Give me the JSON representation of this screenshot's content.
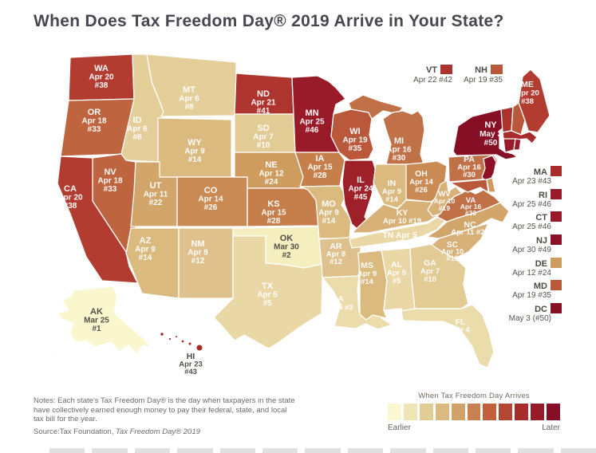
{
  "title": "When Does Tax Freedom Day® 2019 Arrive in Your State?",
  "map": {
    "states": [
      {
        "abbr": "WA",
        "color": "#B23C30",
        "lines": [
          "WA",
          "Apr 20",
          "#38"
        ]
      },
      {
        "abbr": "OR",
        "color": "#BE6540",
        "lines": [
          "OR",
          "Apr 18",
          "#33"
        ]
      },
      {
        "abbr": "CA",
        "color": "#B23C30",
        "lines": [
          "CA",
          "Apr 20",
          "#38"
        ]
      },
      {
        "abbr": "NV",
        "color": "#BE6540",
        "lines": [
          "NV",
          "Apr 18",
          "#33"
        ]
      },
      {
        "abbr": "ID",
        "color": "#E4CF9B",
        "lines": [
          "ID",
          "Apr 6",
          "#8"
        ]
      },
      {
        "abbr": "MT",
        "color": "#E4CF9B",
        "lines": [
          "MT",
          "Apr 6",
          "#8"
        ]
      },
      {
        "abbr": "WY",
        "color": "#DBBA80",
        "lines": [
          "WY",
          "Apr 9",
          "#14"
        ]
      },
      {
        "abbr": "UT",
        "color": "#D2A56B",
        "lines": [
          "UT",
          "Apr 11",
          "#22"
        ]
      },
      {
        "abbr": "CO",
        "color": "#CA8A53",
        "lines": [
          "CO",
          "Apr 14",
          "#26"
        ]
      },
      {
        "abbr": "AZ",
        "color": "#DBBA80",
        "lines": [
          "AZ",
          "Apr 9",
          "#14"
        ]
      },
      {
        "abbr": "NM",
        "color": "#DEC18C",
        "lines": [
          "NM",
          "Apr 8",
          "#12"
        ]
      },
      {
        "abbr": "ND",
        "color": "#AE352E",
        "lines": [
          "ND",
          "Apr 21",
          "#41"
        ]
      },
      {
        "abbr": "SD",
        "color": "#E2CB95",
        "lines": [
          "SD",
          "Apr 7",
          "#10"
        ]
      },
      {
        "abbr": "NE",
        "color": "#CF9C60",
        "lines": [
          "NE",
          "Apr 12",
          "#24"
        ]
      },
      {
        "abbr": "KS",
        "color": "#C67F4B",
        "lines": [
          "KS",
          "Apr 15",
          "#28"
        ]
      },
      {
        "abbr": "OK",
        "color": "#F5EEBE",
        "dark": true,
        "lines": [
          "OK",
          "Mar 30",
          "#2"
        ]
      },
      {
        "abbr": "TX",
        "color": "#E9D8A5",
        "lines": [
          "TX",
          "Apr 5",
          "#5"
        ]
      },
      {
        "abbr": "MN",
        "color": "#991A28",
        "lines": [
          "MN",
          "Apr 25",
          "#46"
        ]
      },
      {
        "abbr": "IA",
        "color": "#C67F4B",
        "lines": [
          "IA",
          "Apr 15",
          "#28"
        ]
      },
      {
        "abbr": "MO",
        "color": "#DBBA80",
        "lines": [
          "MO",
          "Apr 9",
          "#14"
        ]
      },
      {
        "abbr": "AR",
        "color": "#DEC18C",
        "lines": [
          "AR",
          "Apr 8",
          "#12"
        ]
      },
      {
        "abbr": "LA",
        "color": "#EBDCAB",
        "lines": [
          "LA",
          "Apr 4 #3"
        ]
      },
      {
        "abbr": "WI",
        "color": "#B9583A",
        "lines": [
          "WI",
          "Apr 19",
          "#35"
        ]
      },
      {
        "abbr": "IL",
        "color": "#9E2029",
        "lines": [
          "IL",
          "Apr 24",
          "#45"
        ]
      },
      {
        "abbr": "IN",
        "color": "#DBBA80",
        "lines": [
          "IN",
          "Apr 9",
          "#14"
        ]
      },
      {
        "abbr": "MI",
        "color": "#C17148",
        "lines": [
          "MI",
          "Apr 16",
          "#30"
        ]
      },
      {
        "abbr": "OH",
        "color": "#CA8A53",
        "lines": [
          "OH",
          "Apr 14",
          "#26"
        ]
      },
      {
        "abbr": "KY",
        "color": "#D7B178",
        "lines": [
          "KY",
          "Apr 10 #19"
        ]
      },
      {
        "abbr": "TN",
        "color": "#E9D8A5",
        "lines": [
          "TN  Apr 5",
          "#5"
        ]
      },
      {
        "abbr": "MS",
        "color": "#DBBA80",
        "lines": [
          "MS",
          "Apr 9",
          "#14"
        ]
      },
      {
        "abbr": "AL",
        "color": "#E9D8A5",
        "lines": [
          "AL",
          "Apr 5",
          "#5"
        ]
      },
      {
        "abbr": "GA",
        "color": "#E2CB95",
        "lines": [
          "GA",
          "Apr 7",
          "#10"
        ]
      },
      {
        "abbr": "FL",
        "color": "#EBDCAB",
        "lines": [
          "FL",
          "Apr 4",
          "#3"
        ]
      },
      {
        "abbr": "SC",
        "color": "#D7B178",
        "lines": [
          "SC",
          "Apr 10",
          "#19"
        ]
      },
      {
        "abbr": "NC",
        "color": "#D2A56B",
        "lines": [
          "NC",
          "Apr 11 #22"
        ]
      },
      {
        "abbr": "VA",
        "color": "#C17148",
        "lines": [
          "VA",
          "Apr 16",
          "#30"
        ]
      },
      {
        "abbr": "WV",
        "color": "#D7B178",
        "lines": [
          "WV",
          "Apr 10",
          "#19"
        ]
      },
      {
        "abbr": "PA",
        "color": "#C17148",
        "lines": [
          "PA",
          "Apr 16",
          "#30"
        ]
      },
      {
        "abbr": "NY",
        "color": "#860E25",
        "lines": [
          "NY",
          "May 3",
          "#50"
        ]
      },
      {
        "abbr": "ME",
        "color": "#B23C30",
        "lines": [
          "ME",
          "Apr 20",
          "#38"
        ]
      },
      {
        "abbr": "VT",
        "color": "#AC322E",
        "lines": []
      },
      {
        "abbr": "NH",
        "color": "#B9583A",
        "lines": []
      },
      {
        "abbr": "MA",
        "color": "#A72C2B",
        "lines": []
      },
      {
        "abbr": "CT",
        "color": "#991A28",
        "lines": []
      },
      {
        "abbr": "RI",
        "color": "#991A28",
        "lines": []
      },
      {
        "abbr": "NJ",
        "color": "#8D1126",
        "lines": []
      },
      {
        "abbr": "DE",
        "color": "#CF9C60",
        "lines": []
      },
      {
        "abbr": "MD",
        "color": "#B9583A",
        "lines": []
      },
      {
        "abbr": "AK",
        "color": "#FAF7CF",
        "dark": true,
        "lines": [
          "AK",
          "Mar 25",
          "#1"
        ]
      },
      {
        "abbr": "HI",
        "color": "#A72C2B",
        "dark": true,
        "lines": [
          "HI",
          "Apr 23",
          "#43"
        ]
      }
    ]
  },
  "callouts": {
    "top": [
      {
        "abbr": "VT",
        "date": "Apr 22 #42",
        "color": "#AC322E"
      },
      {
        "abbr": "NH",
        "date": "Apr 19 #35",
        "color": "#B9583A"
      }
    ],
    "right": [
      {
        "abbr": "MA",
        "date": "Apr 23 #43",
        "color": "#A72C2B"
      },
      {
        "abbr": "RI",
        "date": "Apr 25 #46",
        "color": "#991A28"
      },
      {
        "abbr": "CT",
        "date": "Apr 25 #46",
        "color": "#991A28"
      },
      {
        "abbr": "NJ",
        "date": "Apr 30 #49",
        "color": "#8D1126"
      },
      {
        "abbr": "DE",
        "date": "Apr 12 #24",
        "color": "#CF9C60"
      },
      {
        "abbr": "MD",
        "date": "Apr 19 #35",
        "color": "#B9583A"
      },
      {
        "abbr": "DC",
        "date": "May 3 (#50)",
        "color": "#860E25"
      }
    ]
  },
  "legend": {
    "title": "When Tax Freedom Day Arrives",
    "left_label": "Earlier",
    "right_label": "Later",
    "colors": [
      "#FAF8D0",
      "#EFE5B5",
      "#E2CC96",
      "#DBBA7F",
      "#D2A369",
      "#CA8152",
      "#C2603C",
      "#B44733",
      "#A62D2A",
      "#981C28",
      "#860E26"
    ]
  },
  "notes": {
    "lines": [
      "Notes: Each state's Tax Freedom Day® is the day when taxpayers in the state",
      "have collectively earned enough money to pay their federal, state, and local",
      "tax bill for the year."
    ],
    "source_prefix": "Source:Tax Foundation, ",
    "source_italic": "Tax Freedom Day® 2019"
  }
}
